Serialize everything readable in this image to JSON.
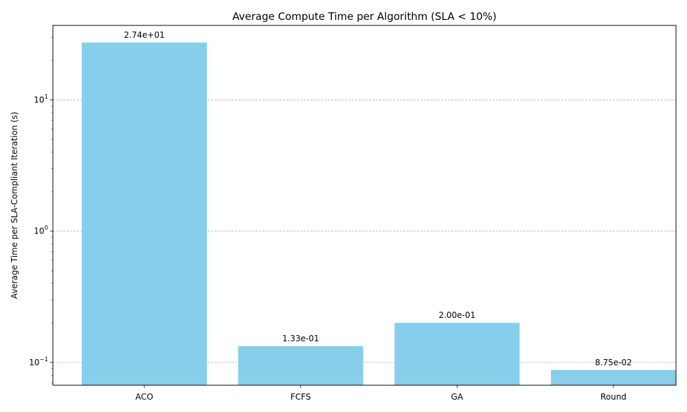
{
  "chart_data": {
    "type": "bar",
    "title": "Average Compute Time per Algorithm (SLA < 10%)",
    "xlabel": "",
    "ylabel": "Average Time per SLA-Compliant Iteration (s)",
    "yscale": "log",
    "ylim": [
      0.067,
      37
    ],
    "yticks": [
      0.1,
      1,
      10
    ],
    "ytick_labels": [
      {
        "base": "10",
        "exp": "−1"
      },
      {
        "base": "10",
        "exp": "0"
      },
      {
        "base": "10",
        "exp": "1"
      }
    ],
    "grid": "y-major-dashed",
    "categories": [
      "ACO",
      "FCFS",
      "GA",
      "Round"
    ],
    "values": [
      27.4,
      0.133,
      0.2,
      0.0875
    ],
    "data_labels": [
      "2.74e+01",
      "1.33e-01",
      "2.00e-01",
      "8.75e-02"
    ],
    "bar_color": "#87ceeb"
  }
}
